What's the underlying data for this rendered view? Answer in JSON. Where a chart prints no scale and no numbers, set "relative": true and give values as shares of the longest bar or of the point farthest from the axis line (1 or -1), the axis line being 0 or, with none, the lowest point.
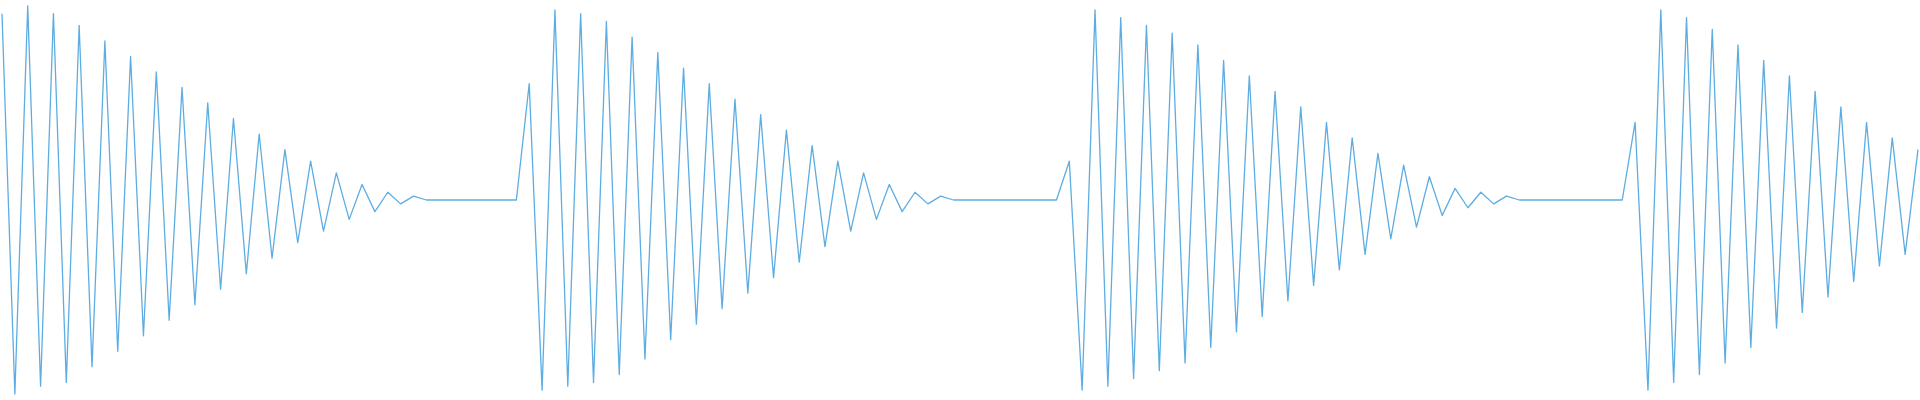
{
  "chart_data": {
    "type": "line",
    "relative": true,
    "categories": [
      null,
      null,
      null,
      null,
      null,
      null,
      null,
      null,
      null,
      null,
      null,
      null,
      null,
      null,
      null,
      null,
      null,
      null,
      null,
      null,
      null,
      null,
      null,
      null,
      null,
      null,
      null,
      null,
      null,
      null,
      null,
      null,
      null,
      null,
      null,
      null,
      null,
      null,
      null,
      null,
      null,
      null,
      null,
      null,
      null,
      null,
      null,
      null,
      null,
      null,
      null,
      null,
      null,
      null,
      null,
      null,
      null,
      null,
      null,
      null,
      null,
      null,
      null,
      null,
      null,
      null,
      null,
      null,
      null,
      null,
      null,
      null,
      null,
      null,
      null,
      null,
      null,
      null,
      null,
      null,
      null,
      null,
      null,
      null,
      null,
      null,
      null,
      null,
      null,
      null,
      null,
      null,
      null,
      null,
      null,
      null,
      null,
      null,
      null,
      null,
      null,
      null,
      null,
      null,
      null,
      null,
      null,
      null,
      null,
      null,
      null,
      null,
      null,
      null,
      null,
      null,
      null,
      null,
      null,
      null,
      null,
      null,
      null,
      null,
      null,
      null,
      null,
      null,
      null,
      null,
      null,
      null,
      null,
      null,
      null,
      null,
      null,
      null,
      null,
      null,
      null,
      null,
      null,
      null,
      null,
      null,
      null,
      null,
      null,
      null
    ],
    "series": [
      {
        "color": "#5dade2",
        "values": [
          0.98,
          0,
          1,
          0.02,
          0.98,
          0.03,
          0.95,
          0.07,
          0.91,
          0.11,
          0.87,
          0.15,
          0.83,
          0.19,
          0.79,
          0.23,
          0.75,
          0.27,
          0.71,
          0.31,
          0.67,
          0.35,
          0.63,
          0.39,
          0.6,
          0.42,
          0.57,
          0.45,
          0.54,
          0.47,
          0.52,
          0.49,
          0.51,
          0.5,
          0.5,
          0.5,
          0.5,
          0.5,
          0.5,
          0.5,
          0.5,
          0.8,
          0.01,
          0.99,
          0.02,
          0.98,
          0.03,
          0.96,
          0.05,
          0.92,
          0.09,
          0.88,
          0.14,
          0.84,
          0.18,
          0.8,
          0.22,
          0.76,
          0.26,
          0.72,
          0.3,
          0.68,
          0.34,
          0.64,
          0.38,
          0.6,
          0.42,
          0.57,
          0.45,
          0.54,
          0.47,
          0.52,
          0.49,
          0.51,
          0.5,
          0.5,
          0.5,
          0.5,
          0.5,
          0.5,
          0.5,
          0.5,
          0.5,
          0.6,
          0.01,
          0.99,
          0.02,
          0.97,
          0.04,
          0.95,
          0.06,
          0.93,
          0.08,
          0.9,
          0.12,
          0.86,
          0.16,
          0.82,
          0.2,
          0.78,
          0.24,
          0.74,
          0.28,
          0.7,
          0.32,
          0.66,
          0.36,
          0.62,
          0.4,
          0.59,
          0.43,
          0.56,
          0.46,
          0.53,
          0.48,
          0.52,
          0.49,
          0.51,
          0.5,
          0.5,
          0.5,
          0.5,
          0.5,
          0.5,
          0.5,
          0.5,
          0.5,
          0.7,
          0.01,
          0.99,
          0.03,
          0.97,
          0.05,
          0.94,
          0.08,
          0.9,
          0.12,
          0.86,
          0.17,
          0.82,
          0.21,
          0.78,
          0.25,
          0.74,
          0.29,
          0.7,
          0.33,
          0.66,
          0.36,
          0.63
        ]
      }
    ]
  }
}
